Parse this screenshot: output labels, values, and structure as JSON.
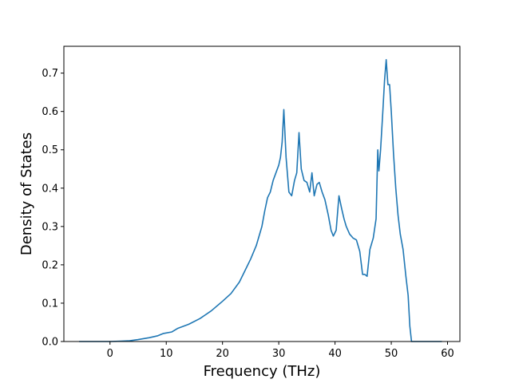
{
  "chart_data": {
    "type": "line",
    "title": "",
    "xlabel": "Frequency (THz)",
    "ylabel": "Density of States",
    "xlim": [
      -8.2,
      62.2
    ],
    "ylim": [
      0,
      0.77
    ],
    "xticks": [
      0,
      10,
      20,
      30,
      40,
      50,
      60
    ],
    "xtick_labels": [
      "0",
      "10",
      "20",
      "30",
      "40",
      "50",
      "60"
    ],
    "yticks": [
      0.0,
      0.1,
      0.2,
      0.3,
      0.4,
      0.5,
      0.6,
      0.7
    ],
    "ytick_labels": [
      "0.0",
      "0.1",
      "0.2",
      "0.3",
      "0.4",
      "0.5",
      "0.6",
      "0.7"
    ],
    "grid": false,
    "series": [
      {
        "color": "#1f77b4",
        "x": [
          -5.5,
          -3,
          0,
          2,
          3.5,
          5,
          7,
          8.5,
          9.5,
          11,
          12,
          14,
          16,
          18,
          20,
          21.5,
          23,
          24,
          25,
          26,
          26.5,
          27,
          27.5,
          28,
          28.5,
          29,
          29.5,
          30,
          30.3,
          30.6,
          30.9,
          31.3,
          31.8,
          32.3,
          32.8,
          33.2,
          33.6,
          34,
          34.5,
          35,
          35.5,
          35.9,
          36.3,
          36.8,
          37.2,
          37.7,
          38.2,
          38.8,
          39.3,
          39.7,
          40.2,
          40.7,
          41.2,
          41.6,
          42,
          42.6,
          43.2,
          43.8,
          44.4,
          44.9,
          45.3,
          45.7,
          46.2,
          46.8,
          47.3,
          47.6,
          47.8,
          48.1,
          48.5,
          48.8,
          49.1,
          49.4,
          49.7,
          50,
          50.4,
          50.8,
          51.2,
          51.6,
          52.1,
          52.6,
          53,
          53.3,
          53.6,
          54,
          56,
          59
        ],
        "y": [
          0.0,
          0.0,
          0.0,
          0.001,
          0.002,
          0.005,
          0.01,
          0.015,
          0.021,
          0.025,
          0.034,
          0.045,
          0.06,
          0.08,
          0.105,
          0.125,
          0.155,
          0.185,
          0.215,
          0.25,
          0.275,
          0.3,
          0.34,
          0.375,
          0.39,
          0.42,
          0.44,
          0.46,
          0.48,
          0.52,
          0.605,
          0.48,
          0.39,
          0.38,
          0.42,
          0.44,
          0.545,
          0.45,
          0.42,
          0.415,
          0.39,
          0.44,
          0.38,
          0.41,
          0.415,
          0.39,
          0.37,
          0.33,
          0.29,
          0.275,
          0.29,
          0.38,
          0.345,
          0.32,
          0.3,
          0.28,
          0.27,
          0.265,
          0.235,
          0.175,
          0.175,
          0.17,
          0.24,
          0.27,
          0.32,
          0.5,
          0.445,
          0.5,
          0.6,
          0.68,
          0.735,
          0.67,
          0.67,
          0.6,
          0.49,
          0.4,
          0.33,
          0.28,
          0.24,
          0.17,
          0.12,
          0.04,
          0.0,
          0.0,
          0.0,
          0.0
        ]
      }
    ]
  }
}
